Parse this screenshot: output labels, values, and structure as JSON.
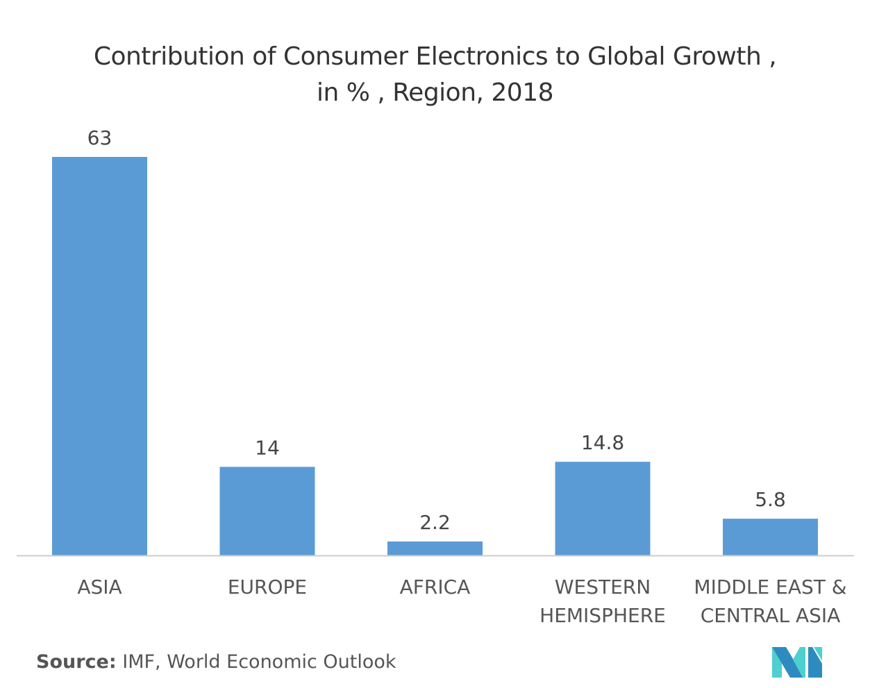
{
  "chart_data": {
    "type": "bar",
    "title_lines": [
      "Contribution of Consumer Electronics to Global Growth ,",
      "in % , Region, 2018"
    ],
    "categories": [
      [
        "ASIA"
      ],
      [
        "EUROPE"
      ],
      [
        "AFRICA"
      ],
      [
        "WESTERN",
        "HEMISPHERE"
      ],
      [
        "MIDDLE EAST &",
        "CENTRAL ASIA"
      ]
    ],
    "values": [
      63,
      14,
      2.2,
      14.8,
      5.8
    ],
    "value_labels": [
      "63",
      "14",
      "2.2",
      "14.8",
      "5.8"
    ],
    "ylim": [
      0,
      63
    ],
    "grid": false,
    "bar_color": "#5b9bd5",
    "xlabel": "",
    "ylabel": ""
  },
  "source": {
    "label": "Source:",
    "text": " IMF, World Economic Outlook"
  },
  "logo": {
    "colors": {
      "dark": "#2e8bc0",
      "light": "#4ecfd0"
    }
  }
}
